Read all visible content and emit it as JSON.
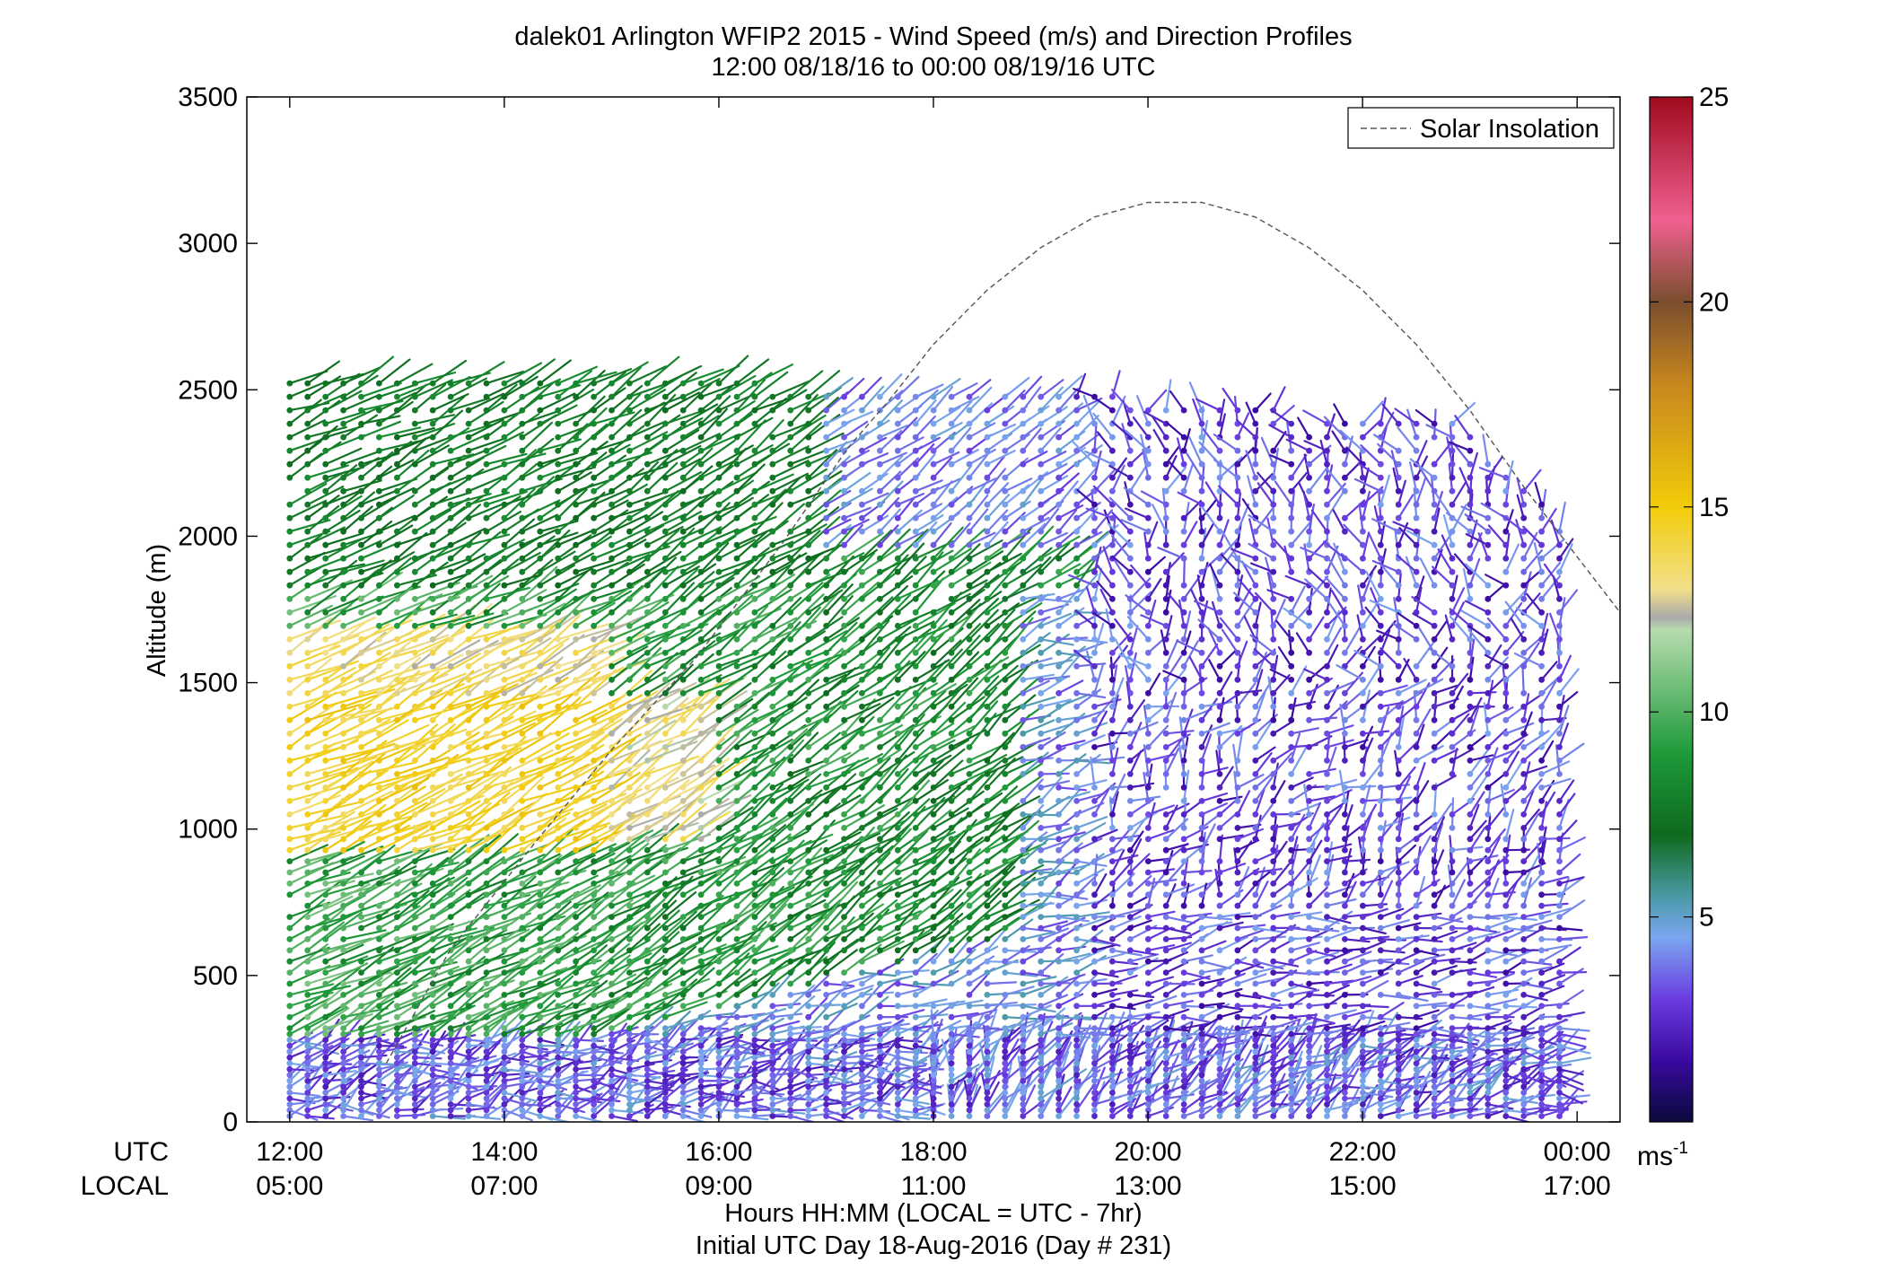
{
  "chart_data": {
    "type": "wind_barb_profile",
    "title": "dalek01 Arlington WFIP2 2015 - Wind Speed (m/s) and Direction Profiles",
    "subtitle": "12:00 08/18/16 to 00:00 08/19/16  UTC",
    "ylabel": "Altitude (m)",
    "xlabel": "Hours HH:MM  (LOCAL = UTC - 7hr)",
    "xlabel2": "Initial UTC Day 18-Aug-2016 (Day # 231)",
    "utc_row_label": "UTC",
    "local_row_label": "LOCAL",
    "x_unit": "UTC hours from 12:00 08/18/16",
    "xlim": [
      11.6,
      24.4
    ],
    "ylim": [
      0,
      3500
    ],
    "y_ticks": [
      "0",
      "500",
      "1000",
      "1500",
      "2000",
      "2500",
      "3000",
      "3500"
    ],
    "x_ticks_utc": [
      "12:00",
      "14:00",
      "16:00",
      "18:00",
      "20:00",
      "22:00",
      "00:00"
    ],
    "x_ticks_local": [
      "05:00",
      "07:00",
      "09:00",
      "11:00",
      "13:00",
      "15:00",
      "17:00"
    ],
    "legend": {
      "position": "top-right",
      "entries": [
        {
          "name": "Solar Insolation",
          "style": "dashed",
          "color": "#555555"
        }
      ]
    },
    "colorbar": {
      "min": 0,
      "max": 25,
      "ticks": [
        "5",
        "10",
        "15",
        "20",
        "25"
      ],
      "unit_label": "ms",
      "unit_exponent": "-1",
      "stops": [
        {
          "v": 0,
          "c": "#0a0a3c"
        },
        {
          "v": 1.5,
          "c": "#3a0aa0"
        },
        {
          "v": 3,
          "c": "#6a3ce0"
        },
        {
          "v": 4.5,
          "c": "#7aa6f0"
        },
        {
          "v": 5.5,
          "c": "#4a9aa6"
        },
        {
          "v": 7,
          "c": "#0e6a1e"
        },
        {
          "v": 9,
          "c": "#1e9a3a"
        },
        {
          "v": 12,
          "c": "#b6dcae"
        },
        {
          "v": 12.3,
          "c": "#aaaaaa"
        },
        {
          "v": 13,
          "c": "#f2e08a"
        },
        {
          "v": 15,
          "c": "#f2cc0a"
        },
        {
          "v": 18,
          "c": "#c8861e"
        },
        {
          "v": 20,
          "c": "#7a4e2e"
        },
        {
          "v": 22,
          "c": "#f06090"
        },
        {
          "v": 25,
          "c": "#a00a1e"
        }
      ]
    },
    "solar_insolation": {
      "x": [
        18.0,
        18.5,
        19.0,
        19.5,
        20.0,
        20.5,
        21.0,
        21.5,
        22.0,
        22.5,
        23.0,
        23.5,
        24.0,
        24.4
      ],
      "y": [
        2655,
        2840,
        2985,
        3090,
        3140,
        3140,
        3090,
        2985,
        2840,
        2655,
        2430,
        2170,
        1930,
        1740
      ],
      "early_segment": {
        "x": [
          12.9,
          13.5,
          14.3,
          15.0,
          15.8,
          16.6,
          17.2
        ],
        "y": [
          200,
          590,
          960,
          1270,
          1590,
          1980,
          2300
        ]
      }
    },
    "profiles": {
      "description": "One profile about every 10 minutes from 12:00 to 00:00 UTC; barb color = wind speed (m/s)",
      "time_start": 12.0,
      "time_end": 24.0,
      "step_hours": 0.1667,
      "speed_regimes": [
        {
          "hours": "12:00-15:00",
          "altitude_m": "300-2550",
          "speed_ms": "8-14",
          "direction_deg": "240-270"
        },
        {
          "hours": "15:00-19:30",
          "altitude_m": "400-2000",
          "speed_ms": "6-10",
          "direction_deg": "220-260"
        },
        {
          "hours": "19:30-24:00",
          "altitude_m": "0-2500",
          "speed_ms": "1-5",
          "direction_deg": "variable"
        },
        {
          "hours": "12:00-24:00",
          "altitude_m": "0-300",
          "speed_ms": "1-5",
          "direction_deg": "variable"
        }
      ]
    }
  }
}
